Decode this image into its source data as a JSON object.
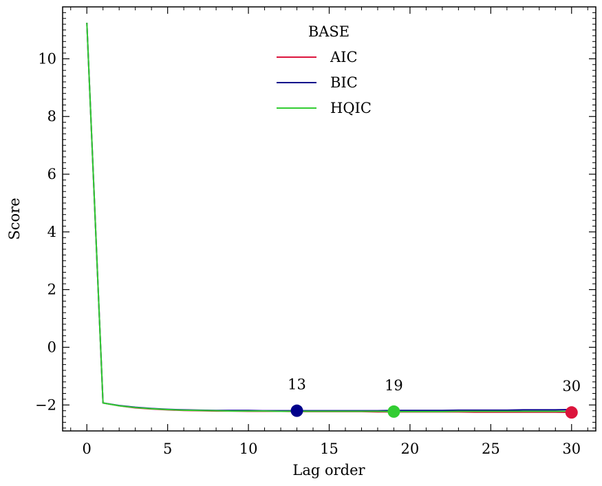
{
  "chart_data": {
    "type": "line",
    "xlabel": "Lag order",
    "ylabel": "Score",
    "xlim": [
      -1.5,
      31.5
    ],
    "ylim": [
      -2.9,
      11.8
    ],
    "xticks": [
      0,
      5,
      10,
      15,
      20,
      25,
      30
    ],
    "yticks": [
      -2,
      0,
      2,
      4,
      6,
      8,
      10
    ],
    "grid": false,
    "legend": {
      "title": "BASE",
      "placement": "top-center"
    },
    "x": [
      0,
      1,
      2,
      3,
      4,
      5,
      6,
      7,
      8,
      9,
      10,
      11,
      12,
      13,
      14,
      15,
      16,
      17,
      18,
      19,
      20,
      21,
      22,
      23,
      24,
      25,
      26,
      27,
      28,
      29,
      30
    ],
    "series": [
      {
        "name": "AIC",
        "color": "#dc143c",
        "values": [
          11.25,
          -1.93,
          -2.03,
          -2.1,
          -2.14,
          -2.17,
          -2.19,
          -2.2,
          -2.21,
          -2.21,
          -2.22,
          -2.22,
          -2.22,
          -2.23,
          -2.23,
          -2.23,
          -2.23,
          -2.23,
          -2.24,
          -2.24,
          -2.24,
          -2.24,
          -2.24,
          -2.24,
          -2.25,
          -2.25,
          -2.25,
          -2.25,
          -2.25,
          -2.25,
          -2.26
        ]
      },
      {
        "name": "BIC",
        "color": "#00008b",
        "values": [
          11.25,
          -1.93,
          -2.02,
          -2.08,
          -2.12,
          -2.15,
          -2.17,
          -2.18,
          -2.19,
          -2.19,
          -2.19,
          -2.2,
          -2.2,
          -2.2,
          -2.2,
          -2.2,
          -2.2,
          -2.2,
          -2.2,
          -2.19,
          -2.19,
          -2.19,
          -2.19,
          -2.18,
          -2.18,
          -2.18,
          -2.18,
          -2.17,
          -2.17,
          -2.17,
          -2.16
        ]
      },
      {
        "name": "HQIC",
        "color": "#32cd32",
        "values": [
          11.25,
          -1.93,
          -2.03,
          -2.09,
          -2.13,
          -2.16,
          -2.18,
          -2.19,
          -2.2,
          -2.21,
          -2.21,
          -2.21,
          -2.22,
          -2.22,
          -2.22,
          -2.22,
          -2.22,
          -2.22,
          -2.22,
          -2.23,
          -2.23,
          -2.23,
          -2.23,
          -2.22,
          -2.22,
          -2.22,
          -2.22,
          -2.22,
          -2.22,
          -2.22,
          -2.22
        ]
      }
    ],
    "annotations": [
      {
        "series": "BIC",
        "x": 13,
        "y": -2.2,
        "label": "13",
        "color": "#00008b"
      },
      {
        "series": "HQIC",
        "x": 19,
        "y": -2.23,
        "label": "19",
        "color": "#32cd32"
      },
      {
        "series": "AIC",
        "x": 30,
        "y": -2.26,
        "label": "30",
        "color": "#dc143c"
      }
    ]
  }
}
